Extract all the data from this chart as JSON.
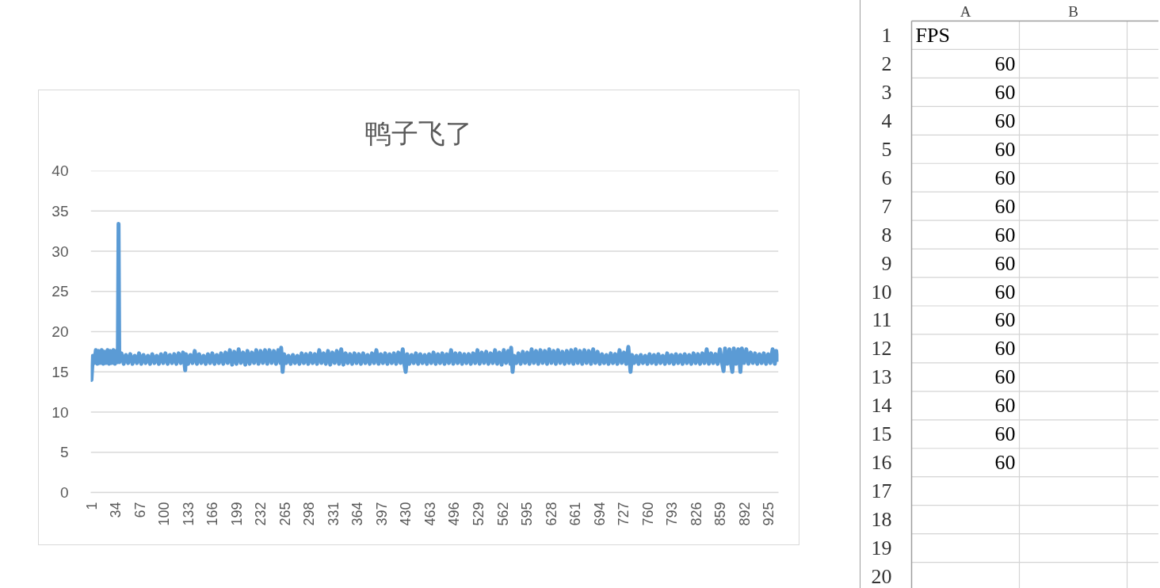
{
  "chart_data": [
    {
      "type": "line",
      "title": "鸭子飞了",
      "color": "#5b9bd5",
      "line_style": "solid",
      "grid": "y",
      "xlim": [
        0,
        939
      ],
      "xticks": [
        1,
        34,
        67,
        100,
        133,
        166,
        199,
        232,
        265,
        298,
        331,
        364,
        397,
        430,
        463,
        496,
        529,
        562,
        595,
        628,
        661,
        694,
        727,
        760,
        793,
        826,
        859,
        892,
        925
      ],
      "ylim": [
        0,
        40
      ],
      "yticks": [
        0,
        5,
        10,
        15,
        20,
        25,
        30,
        35,
        40
      ],
      "x": [
        1,
        3,
        5,
        7,
        9,
        11,
        13,
        15,
        17,
        19,
        21,
        23,
        25,
        27,
        29,
        31,
        33,
        35,
        37,
        38,
        39,
        42,
        45,
        48,
        51,
        54,
        57,
        60,
        63,
        66,
        69,
        72,
        75,
        78,
        81,
        84,
        87,
        90,
        93,
        96,
        99,
        102,
        105,
        108,
        111,
        114,
        117,
        120,
        123,
        126,
        128,
        129,
        130,
        133,
        136,
        139,
        142,
        145,
        148,
        151,
        154,
        157,
        160,
        163,
        166,
        169,
        172,
        175,
        178,
        181,
        184,
        187,
        190,
        193,
        196,
        199,
        202,
        205,
        208,
        211,
        214,
        217,
        220,
        223,
        226,
        229,
        232,
        235,
        238,
        241,
        244,
        247,
        250,
        253,
        256,
        259,
        260,
        262,
        264,
        267,
        270,
        273,
        276,
        279,
        282,
        285,
        288,
        291,
        294,
        297,
        300,
        303,
        306,
        309,
        312,
        315,
        318,
        321,
        324,
        327,
        330,
        333,
        336,
        339,
        342,
        345,
        348,
        351,
        354,
        357,
        360,
        363,
        366,
        369,
        372,
        375,
        378,
        381,
        384,
        387,
        390,
        393,
        396,
        399,
        402,
        405,
        408,
        411,
        414,
        417,
        420,
        423,
        426,
        428,
        430,
        432,
        435,
        438,
        441,
        444,
        447,
        450,
        453,
        456,
        459,
        462,
        465,
        468,
        471,
        474,
        477,
        480,
        483,
        486,
        489,
        492,
        495,
        498,
        501,
        504,
        507,
        510,
        513,
        516,
        519,
        522,
        525,
        528,
        531,
        534,
        537,
        540,
        543,
        546,
        549,
        552,
        555,
        558,
        561,
        564,
        567,
        570,
        573,
        574,
        576,
        578,
        581,
        584,
        587,
        590,
        593,
        596,
        599,
        602,
        605,
        608,
        611,
        614,
        617,
        620,
        623,
        626,
        629,
        632,
        635,
        638,
        641,
        644,
        647,
        650,
        653,
        656,
        659,
        662,
        665,
        668,
        671,
        674,
        677,
        680,
        683,
        686,
        689,
        692,
        695,
        698,
        701,
        704,
        707,
        710,
        713,
        716,
        719,
        722,
        725,
        728,
        731,
        734,
        737,
        739,
        742,
        745,
        748,
        751,
        754,
        757,
        760,
        763,
        766,
        769,
        772,
        775,
        778,
        781,
        784,
        787,
        790,
        793,
        796,
        799,
        802,
        805,
        808,
        811,
        814,
        817,
        820,
        823,
        826,
        829,
        832,
        835,
        838,
        841,
        844,
        847,
        850,
        853,
        856,
        859,
        862,
        864,
        866,
        869,
        872,
        874,
        876,
        878,
        881,
        884,
        886,
        887,
        889,
        892,
        895,
        898,
        901,
        904,
        907,
        910,
        913,
        916,
        919,
        922,
        925,
        928,
        931,
        934,
        936,
        938
      ],
      "values": [
        14.0,
        17.0,
        16.1,
        17.7,
        16.0,
        17.6,
        16.1,
        17.7,
        16.0,
        17.5,
        16.1,
        17.7,
        16.0,
        17.6,
        16.1,
        17.7,
        16.0,
        17.6,
        16.2,
        33.4,
        16.2,
        17.3,
        16.0,
        17.1,
        16.1,
        17.2,
        16.0,
        17.0,
        16.1,
        17.3,
        16.0,
        17.1,
        16.1,
        17.0,
        16.0,
        17.2,
        16.1,
        17.0,
        16.0,
        17.2,
        16.1,
        17.3,
        16.0,
        17.1,
        16.1,
        17.2,
        16.0,
        17.3,
        16.1,
        17.4,
        16.1,
        15.2,
        17.2,
        16.0,
        17.1,
        16.1,
        17.6,
        16.0,
        17.2,
        16.1,
        17.0,
        16.0,
        17.2,
        16.1,
        17.3,
        16.0,
        17.1,
        16.1,
        17.3,
        16.0,
        17.4,
        16.1,
        17.7,
        15.9,
        17.5,
        16.0,
        17.8,
        16.1,
        17.4,
        15.9,
        17.6,
        16.0,
        17.4,
        16.1,
        17.7,
        16.0,
        17.6,
        16.1,
        17.7,
        16.0,
        17.7,
        16.1,
        17.6,
        16.0,
        17.7,
        16.1,
        18.0,
        15.0,
        17.2,
        16.1,
        17.0,
        16.0,
        17.1,
        16.1,
        17.0,
        16.0,
        17.3,
        16.1,
        17.2,
        16.0,
        17.3,
        16.1,
        17.2,
        16.0,
        17.7,
        16.1,
        17.3,
        16.0,
        17.6,
        15.9,
        17.4,
        16.1,
        17.6,
        16.0,
        17.8,
        15.9,
        17.3,
        16.1,
        17.2,
        16.0,
        17.3,
        16.1,
        17.2,
        16.0,
        17.3,
        16.1,
        17.1,
        16.0,
        17.3,
        16.1,
        17.7,
        16.0,
        17.2,
        16.1,
        17.3,
        16.0,
        17.2,
        16.1,
        17.3,
        16.0,
        17.4,
        16.1,
        17.8,
        16.1,
        15.0,
        17.2,
        16.0,
        17.1,
        16.1,
        17.3,
        16.0,
        17.2,
        16.1,
        17.1,
        16.0,
        17.2,
        16.1,
        17.4,
        16.0,
        17.2,
        16.1,
        17.3,
        16.0,
        17.2,
        16.1,
        17.7,
        16.0,
        17.3,
        16.1,
        17.3,
        16.0,
        17.2,
        16.1,
        17.2,
        16.0,
        17.3,
        16.1,
        17.7,
        16.0,
        17.4,
        16.1,
        17.5,
        16.0,
        17.3,
        16.1,
        17.7,
        16.0,
        17.4,
        15.9,
        17.7,
        16.1,
        17.6,
        16.0,
        18.0,
        15.0,
        17.0,
        16.1,
        17.3,
        16.0,
        17.5,
        16.1,
        17.4,
        16.0,
        17.8,
        16.1,
        17.6,
        16.0,
        17.7,
        16.1,
        17.6,
        16.0,
        17.8,
        16.1,
        17.6,
        16.0,
        17.7,
        16.1,
        17.5,
        16.0,
        17.6,
        16.1,
        17.7,
        16.0,
        17.8,
        16.1,
        17.6,
        16.0,
        17.7,
        16.1,
        17.6,
        16.0,
        17.8,
        16.1,
        17.5,
        16.0,
        17.2,
        16.1,
        17.1,
        16.0,
        17.3,
        16.1,
        17.2,
        16.0,
        17.7,
        16.1,
        17.4,
        16.0,
        18.1,
        15.0,
        17.1,
        16.1,
        17.0,
        16.0,
        17.1,
        16.1,
        17.0,
        16.0,
        17.2,
        16.1,
        17.1,
        16.0,
        17.2,
        16.1,
        17.0,
        16.0,
        17.3,
        16.1,
        17.1,
        16.0,
        17.2,
        16.1,
        17.1,
        16.0,
        17.2,
        16.1,
        17.1,
        16.0,
        17.3,
        16.1,
        17.2,
        16.0,
        17.3,
        16.1,
        17.8,
        16.0,
        17.3,
        16.1,
        17.2,
        16.0,
        17.8,
        16.1,
        15.1,
        17.9,
        16.0,
        17.8,
        16.1,
        15.0,
        17.9,
        16.0,
        17.8,
        16.1,
        15.0,
        17.9,
        16.1,
        17.8,
        16.0,
        17.4,
        16.1,
        17.3,
        16.0,
        17.2,
        16.1,
        17.3,
        16.0,
        17.2,
        16.1,
        17.8,
        16.0,
        17.6,
        16.5
      ]
    },
    {
      "type": "heatmap",
      "categories": [
        "A",
        "B"
      ],
      "y_categories": [
        "1",
        "2",
        "3",
        "4",
        "5",
        "6",
        "7",
        "8",
        "9",
        "10",
        "11",
        "12",
        "13",
        "14",
        "15",
        "16",
        "17",
        "18",
        "19",
        "20"
      ],
      "cells": [
        [
          null,
          null
        ],
        [
          null,
          null
        ],
        [
          null,
          null
        ],
        [
          null,
          null
        ],
        [
          null,
          null
        ],
        [
          null,
          null
        ],
        [
          null,
          null
        ],
        [
          null,
          null
        ],
        [
          null,
          null
        ],
        [
          null,
          null
        ],
        [
          null,
          null
        ],
        [
          null,
          null
        ],
        [
          null,
          null
        ],
        [
          null,
          null
        ],
        [
          null,
          null
        ],
        [
          null,
          null
        ],
        [
          null,
          null
        ],
        [
          null,
          null
        ],
        [
          null,
          null
        ],
        [
          null,
          null
        ]
      ],
      "cell_labels": [
        [
          "FPS",
          null
        ],
        [
          "60",
          null
        ],
        [
          "60",
          null
        ],
        [
          "60",
          null
        ],
        [
          "60",
          null
        ],
        [
          "60",
          null
        ],
        [
          "60",
          null
        ],
        [
          "60",
          null
        ],
        [
          "60",
          null
        ],
        [
          "60",
          null
        ],
        [
          "60",
          null
        ],
        [
          "60",
          null
        ],
        [
          "60",
          null
        ],
        [
          "60",
          null
        ],
        [
          "60",
          null
        ],
        [
          "60",
          null
        ],
        [
          null,
          null
        ],
        [
          null,
          null
        ],
        [
          null,
          null
        ],
        [
          null,
          null
        ]
      ]
    }
  ]
}
